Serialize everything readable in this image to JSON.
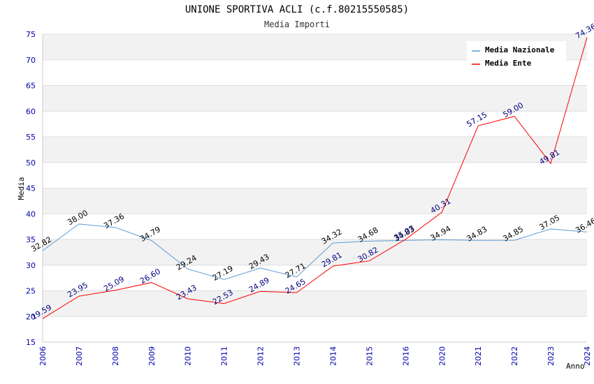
{
  "chart_data": {
    "type": "line",
    "title": "UNIONE SPORTIVA ACLI (c.f.80215550585)",
    "subtitle": "Media Importi",
    "xlabel": "Anno",
    "ylabel": "Media",
    "ylim": [
      15,
      75
    ],
    "yticks": [
      "15",
      "20",
      "25",
      "30",
      "35",
      "40",
      "45",
      "50",
      "55",
      "60",
      "65",
      "70",
      "75"
    ],
    "grid": true,
    "legend_position": "top-right",
    "categories": [
      "2006",
      "2007",
      "2008",
      "2009",
      "2010",
      "2011",
      "2012",
      "2013",
      "2014",
      "2015",
      "2016",
      "2020",
      "2021",
      "2022",
      "2023",
      "2024"
    ],
    "series": [
      {
        "name": "Media Nazionale",
        "color": "#5b9bd5",
        "values": [
          32.82,
          38.0,
          37.36,
          34.79,
          29.24,
          27.19,
          29.43,
          27.71,
          34.32,
          34.68,
          34.83,
          34.94,
          34.83,
          34.85,
          37.05,
          36.46
        ],
        "labels": [
          "32.82",
          "38.00",
          "37.36",
          "34.79",
          "29.24",
          "27.19",
          "29.43",
          "27.71",
          "34.32",
          "34.68",
          "34.83",
          "34.94",
          "34.83",
          "34.85",
          "37.05",
          "36.46"
        ]
      },
      {
        "name": "Media Ente",
        "color": "#ff0000",
        "values": [
          19.59,
          23.95,
          25.09,
          26.6,
          23.43,
          22.53,
          24.89,
          24.65,
          29.81,
          30.82,
          35.03,
          40.31,
          57.15,
          59.0,
          49.81,
          74.36
        ],
        "labels": [
          "19.59",
          "23.95",
          "25.09",
          "26.60",
          "23.43",
          "22.53",
          "24.89",
          "24.65",
          "29.81",
          "30.82",
          "35.03",
          "40.31",
          "57.15",
          "59.00",
          "49.81",
          "74.36"
        ]
      }
    ]
  }
}
